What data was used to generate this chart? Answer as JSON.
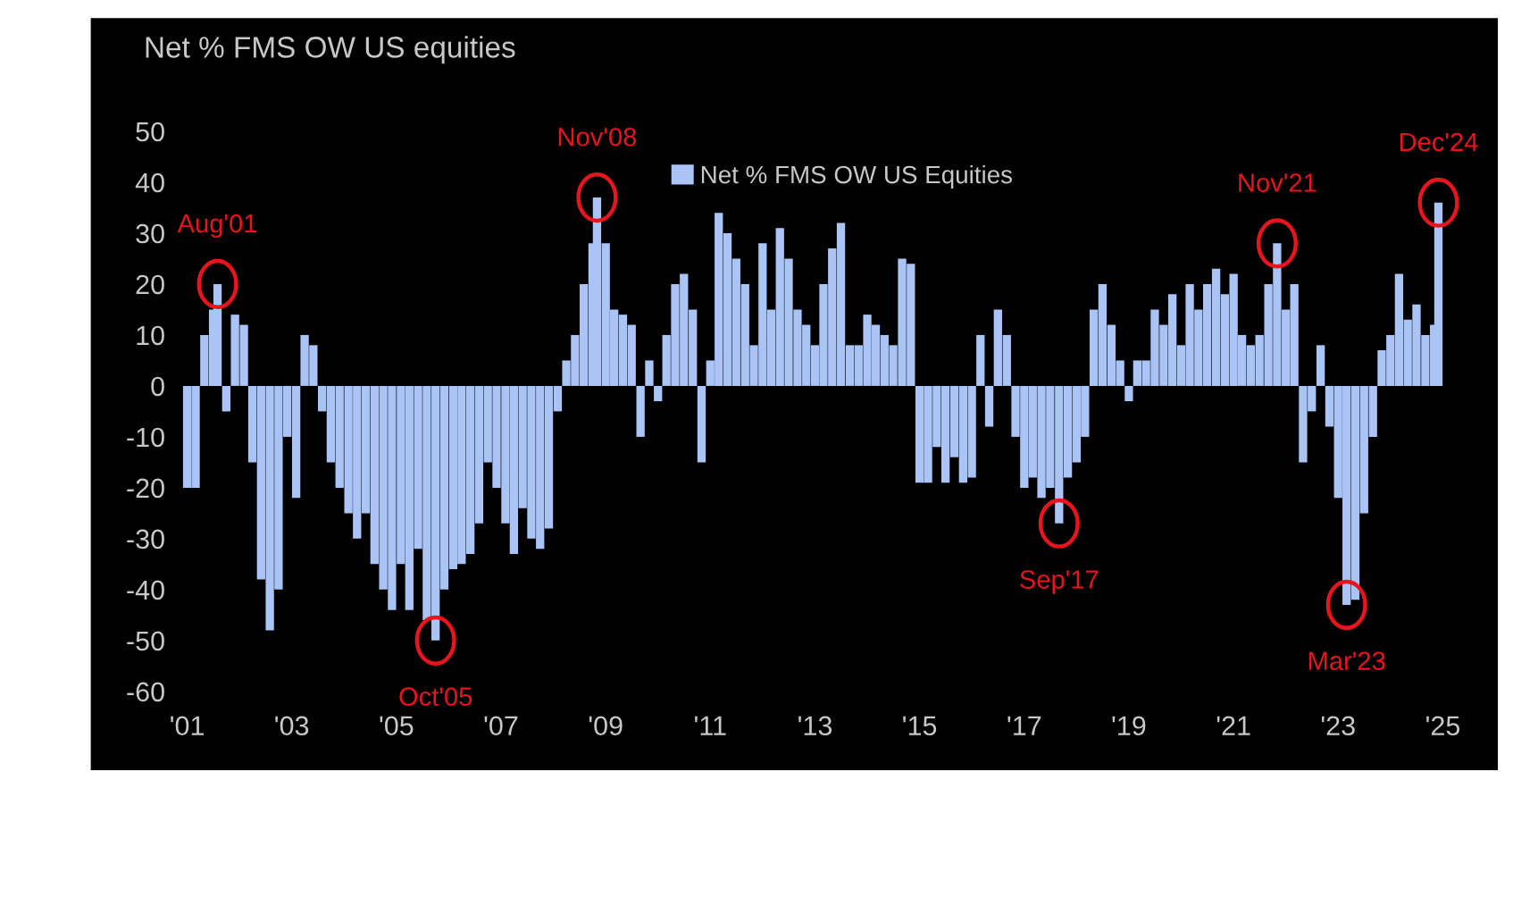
{
  "chart_data": {
    "type": "bar",
    "title": "Net % FMS OW US equities",
    "x": [
      "2001-01",
      "2001-03",
      "2001-05",
      "2001-07",
      "2001-08",
      "2001-10",
      "2001-12",
      "2002-02",
      "2002-04",
      "2002-06",
      "2002-08",
      "2002-10",
      "2002-12",
      "2003-02",
      "2003-04",
      "2003-06",
      "2003-08",
      "2003-10",
      "2003-12",
      "2004-02",
      "2004-04",
      "2004-06",
      "2004-08",
      "2004-10",
      "2004-12",
      "2005-02",
      "2005-04",
      "2005-06",
      "2005-08",
      "2005-10",
      "2005-12",
      "2006-02",
      "2006-04",
      "2006-06",
      "2006-08",
      "2006-10",
      "2006-12",
      "2007-02",
      "2007-04",
      "2007-06",
      "2007-08",
      "2007-10",
      "2007-12",
      "2008-02",
      "2008-04",
      "2008-06",
      "2008-08",
      "2008-10",
      "2008-11",
      "2009-01",
      "2009-03",
      "2009-05",
      "2009-07",
      "2009-09",
      "2009-11",
      "2010-01",
      "2010-03",
      "2010-05",
      "2010-07",
      "2010-09",
      "2010-11",
      "2011-01",
      "2011-03",
      "2011-05",
      "2011-07",
      "2011-09",
      "2011-11",
      "2012-01",
      "2012-03",
      "2012-05",
      "2012-07",
      "2012-09",
      "2012-11",
      "2013-01",
      "2013-03",
      "2013-05",
      "2013-07",
      "2013-09",
      "2013-11",
      "2014-01",
      "2014-03",
      "2014-05",
      "2014-07",
      "2014-09",
      "2014-11",
      "2015-01",
      "2015-03",
      "2015-05",
      "2015-07",
      "2015-09",
      "2015-11",
      "2016-01",
      "2016-03",
      "2016-05",
      "2016-07",
      "2016-09",
      "2016-11",
      "2017-01",
      "2017-03",
      "2017-05",
      "2017-07",
      "2017-09",
      "2017-11",
      "2018-01",
      "2018-03",
      "2018-05",
      "2018-07",
      "2018-09",
      "2018-11",
      "2019-01",
      "2019-03",
      "2019-05",
      "2019-07",
      "2019-09",
      "2019-11",
      "2020-01",
      "2020-03",
      "2020-05",
      "2020-07",
      "2020-09",
      "2020-11",
      "2021-01",
      "2021-03",
      "2021-05",
      "2021-07",
      "2021-09",
      "2021-11",
      "2022-01",
      "2022-03",
      "2022-05",
      "2022-07",
      "2022-09",
      "2022-11",
      "2023-01",
      "2023-03",
      "2023-05",
      "2023-07",
      "2023-09",
      "2023-11",
      "2024-01",
      "2024-03",
      "2024-05",
      "2024-07",
      "2024-09",
      "2024-11",
      "2024-12"
    ],
    "series": [
      {
        "name": "Net % FMS OW US Equities",
        "color": "#a9c4f5",
        "values": [
          -20,
          -20,
          10,
          15,
          20,
          -5,
          14,
          12,
          -15,
          -38,
          -48,
          -40,
          -10,
          -22,
          10,
          8,
          -5,
          -15,
          -20,
          -25,
          -30,
          -25,
          -35,
          -40,
          -44,
          -35,
          -44,
          -32,
          -46,
          -50,
          -40,
          -36,
          -35,
          -33,
          -27,
          -15,
          -20,
          -27,
          -33,
          -24,
          -30,
          -32,
          -28,
          -5,
          5,
          10,
          20,
          28,
          37,
          28,
          15,
          14,
          12,
          -10,
          5,
          -3,
          10,
          20,
          22,
          15,
          -15,
          5,
          34,
          30,
          25,
          20,
          8,
          28,
          15,
          31,
          25,
          15,
          12,
          8,
          20,
          27,
          32,
          8,
          8,
          14,
          12,
          10,
          8,
          25,
          24,
          -19,
          -19,
          -12,
          -19,
          -14,
          -19,
          -18,
          10,
          -8,
          15,
          10,
          -10,
          -20,
          -18,
          -22,
          -20,
          -27,
          -18,
          -15,
          -10,
          15,
          20,
          12,
          5,
          -3,
          5,
          5,
          15,
          12,
          18,
          8,
          20,
          15,
          20,
          23,
          18,
          22,
          10,
          8,
          10,
          20,
          28,
          15,
          20,
          -15,
          -5,
          8,
          -8,
          -22,
          -43,
          -42,
          -25,
          -10,
          7,
          10,
          22,
          13,
          16,
          10,
          12,
          36
        ]
      }
    ],
    "xlim": [
      "2000-10",
      "2025-05"
    ],
    "xticks": [
      {
        "value": "2001-01",
        "label": "'01"
      },
      {
        "value": "2003-01",
        "label": "'03"
      },
      {
        "value": "2005-01",
        "label": "'05"
      },
      {
        "value": "2007-01",
        "label": "'07"
      },
      {
        "value": "2009-01",
        "label": "'09"
      },
      {
        "value": "2011-01",
        "label": "'11"
      },
      {
        "value": "2013-01",
        "label": "'13"
      },
      {
        "value": "2015-01",
        "label": "'15"
      },
      {
        "value": "2017-01",
        "label": "'17"
      },
      {
        "value": "2019-01",
        "label": "'19"
      },
      {
        "value": "2021-01",
        "label": "'21"
      },
      {
        "value": "2023-01",
        "label": "'23"
      },
      {
        "value": "2025-01",
        "label": "'25"
      }
    ],
    "ylim": [
      -63,
      58
    ],
    "yticks": [
      -60,
      -50,
      -40,
      -30,
      -20,
      -10,
      0,
      10,
      20,
      30,
      40,
      50
    ],
    "grid": false,
    "legend": "top",
    "annotations": [
      {
        "text": "Aug'01",
        "x": "2001-08",
        "y": 20
      },
      {
        "text": "Oct'05",
        "x": "2005-10",
        "y": -50
      },
      {
        "text": "Nov'08",
        "x": "2008-11",
        "y": 37
      },
      {
        "text": "Sep'17",
        "x": "2017-09",
        "y": -27
      },
      {
        "text": "Nov'21",
        "x": "2021-11",
        "y": 28
      },
      {
        "text": "Mar'23",
        "x": "2023-03",
        "y": -43
      },
      {
        "text": "Dec'24",
        "x": "2024-12",
        "y": 36
      }
    ]
  }
}
